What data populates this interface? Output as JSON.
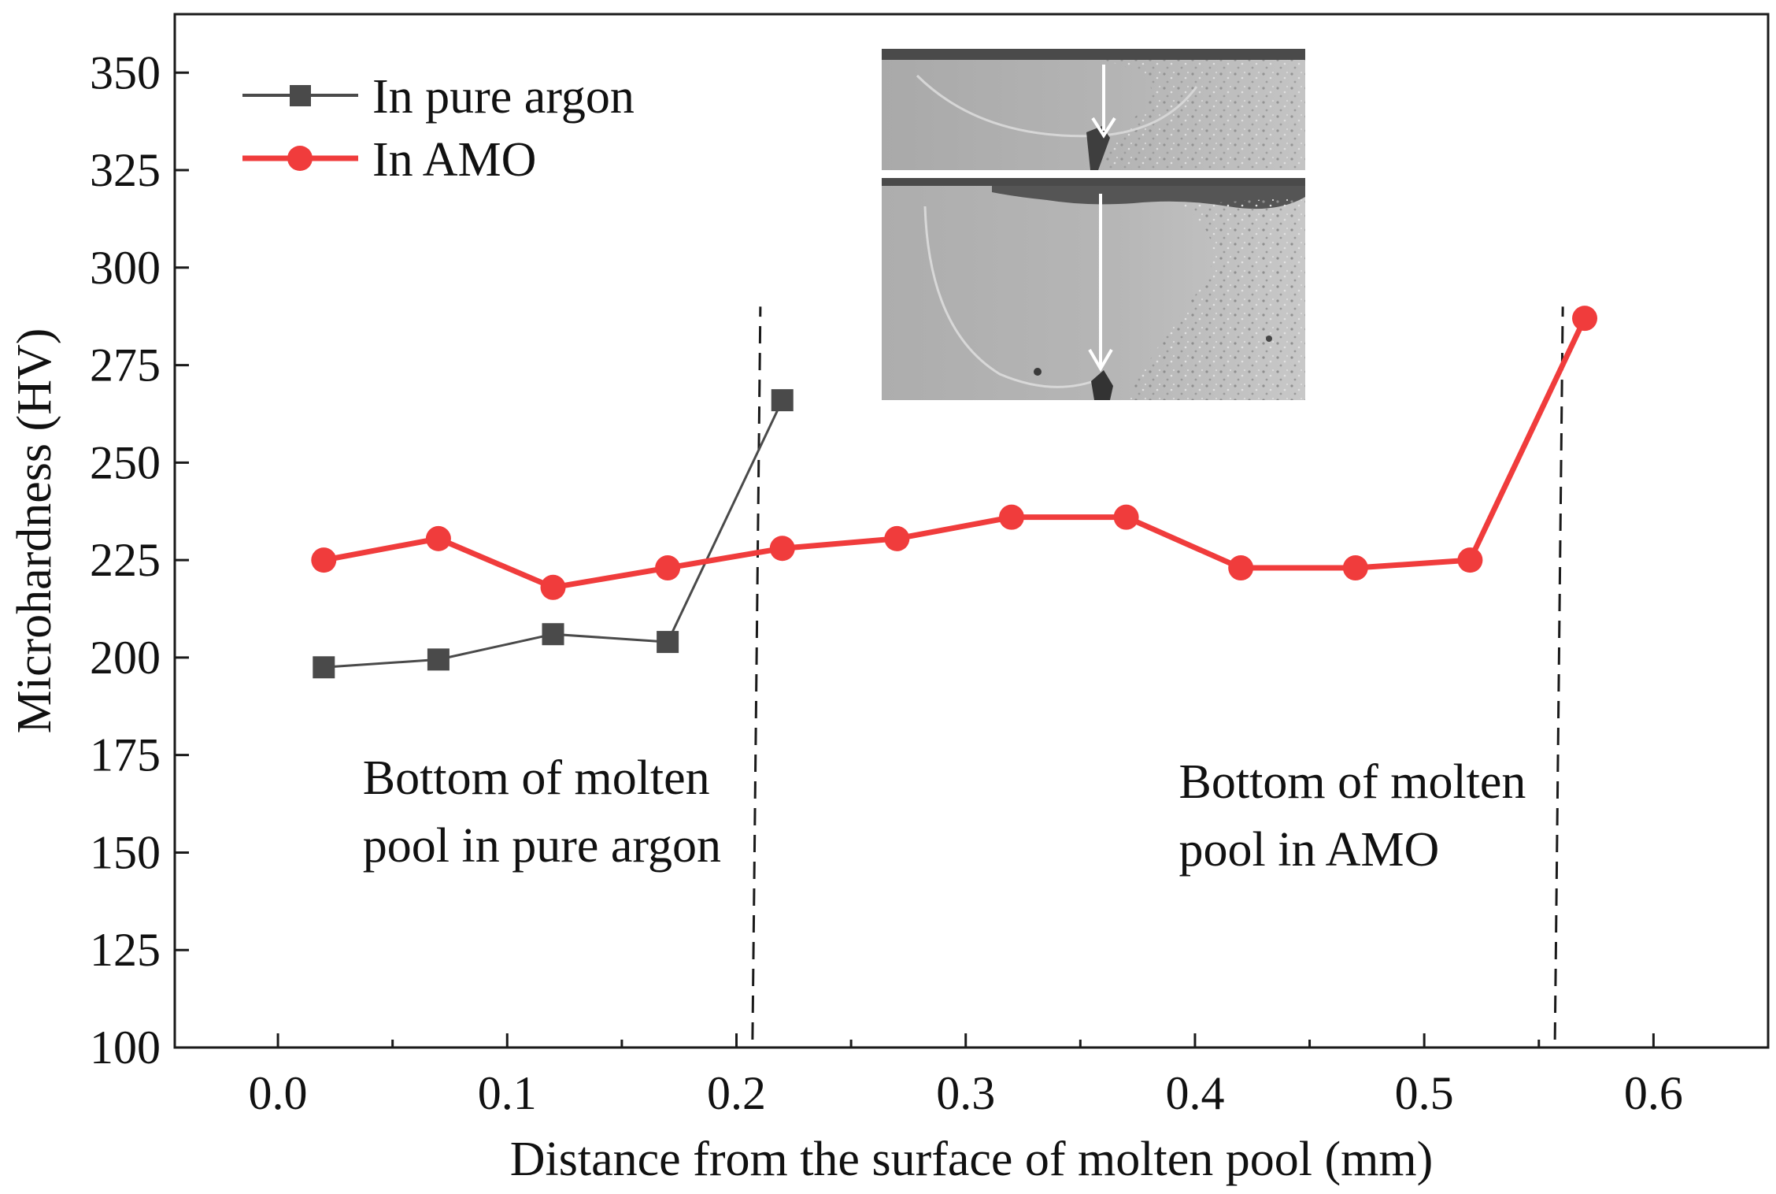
{
  "chart_data": {
    "type": "line",
    "xlabel": "Distance from the surface of molten pool (mm)",
    "ylabel": "Microhardness (HV)",
    "xlim": [
      -0.045,
      0.65
    ],
    "ylim": [
      100,
      365
    ],
    "xticks": [
      0.0,
      0.1,
      0.2,
      0.3,
      0.4,
      0.5,
      0.6
    ],
    "xtick_labels": [
      "0.0",
      "0.1",
      "0.2",
      "0.3",
      "0.4",
      "0.5",
      "0.6"
    ],
    "yticks": [
      100,
      125,
      150,
      175,
      200,
      225,
      250,
      275,
      300,
      325,
      350
    ],
    "ytick_labels": [
      "100",
      "125",
      "150",
      "175",
      "200",
      "225",
      "250",
      "275",
      "300",
      "325",
      "350"
    ],
    "series": [
      {
        "name": "In pure argon",
        "marker": "square",
        "color": "#4a4a4a",
        "x": [
          0.02,
          0.07,
          0.12,
          0.17,
          0.22
        ],
        "values": [
          197.5,
          199.5,
          206,
          204,
          266
        ]
      },
      {
        "name": "In AMO",
        "marker": "circle",
        "color": "#f03c3c",
        "x": [
          0.02,
          0.07,
          0.12,
          0.17,
          0.22,
          0.27,
          0.32,
          0.37,
          0.42,
          0.47,
          0.52,
          0.57
        ],
        "values": [
          225,
          230.5,
          218,
          223,
          228,
          230.5,
          236,
          236,
          223,
          223,
          225,
          287
        ]
      }
    ],
    "reference_lines": [
      {
        "name": "pure-argon-bottom",
        "x": 0.207,
        "y_range": [
          100,
          290
        ]
      },
      {
        "name": "amo-bottom",
        "x": 0.557,
        "y_range": [
          100,
          290
        ]
      }
    ],
    "annotations": [
      {
        "lines": [
          "Bottom of molten",
          "pool in pure argon"
        ],
        "x": 0.037,
        "y": 165
      },
      {
        "lines": [
          "Bottom of molten",
          "pool in AMO"
        ],
        "x": 0.393,
        "y": 164
      }
    ],
    "legend_position": "top-left",
    "inset": "micrograph-cross-sections"
  }
}
